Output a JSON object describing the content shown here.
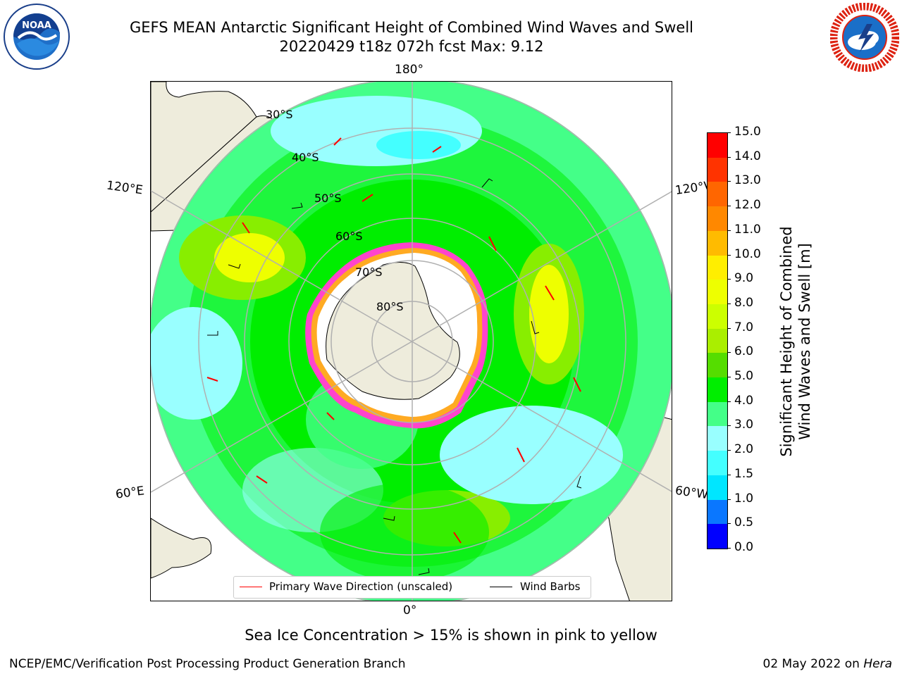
{
  "header": {
    "title_line1": "GEFS MEAN Antarctic Significant Height of Combined Wind Waves and Swell",
    "title_line2": "20220429 t18z 072h fcst   Max: 9.12"
  },
  "logos": {
    "left": "NOAA",
    "right": "NATIONAL WEATHER SERVICE"
  },
  "map": {
    "projection": "south-polar-stereographic",
    "lon_labels": {
      "top": "180°",
      "bottom": "0°",
      "upper_left": "120°E",
      "upper_right": "120°W",
      "lower_left": "60°E",
      "lower_right": "60°W"
    },
    "lat_labels": [
      "30°S",
      "40°S",
      "50°S",
      "60°S",
      "70°S",
      "80°S"
    ],
    "colors": {
      "land": "#eeecdc",
      "ice_edge": "#ff44cc",
      "ice_edge_inner": "#ffaa22",
      "grid": "#b0b0b0",
      "wave_arrow": "#ff0000",
      "wind_barb": "#000000"
    }
  },
  "legend": {
    "primary_wave": "Primary Wave Direction (unscaled)",
    "wind_barbs": "Wind Barbs"
  },
  "colorbar": {
    "label_line1": "Significant Height of Combined",
    "label_line2": "Wind Waves and Swell [m]",
    "ticks": [
      "0.0",
      "0.5",
      "1.0",
      "1.5",
      "2.0",
      "3.0",
      "4.0",
      "5.0",
      "6.0",
      "7.0",
      "8.0",
      "9.0",
      "10.0",
      "11.0",
      "12.0",
      "13.0",
      "14.0",
      "15.0"
    ],
    "colors": [
      "#0000ff",
      "#0a77ff",
      "#00e6ff",
      "#44ffff",
      "#99ffff",
      "#44ff88",
      "#00ee00",
      "#55dd00",
      "#aaee00",
      "#ccff00",
      "#eeff00",
      "#ffee00",
      "#ffbb00",
      "#ff8800",
      "#ff6600",
      "#ff3300",
      "#ff0000"
    ]
  },
  "subtitle": "Sea Ice Concentration > 15% is shown in pink to yellow",
  "footer": {
    "left": "NCEP/EMC/Verification Post Processing Product Generation Branch",
    "right_prefix": "02 May 2022 on ",
    "right_host": "Hera"
  }
}
